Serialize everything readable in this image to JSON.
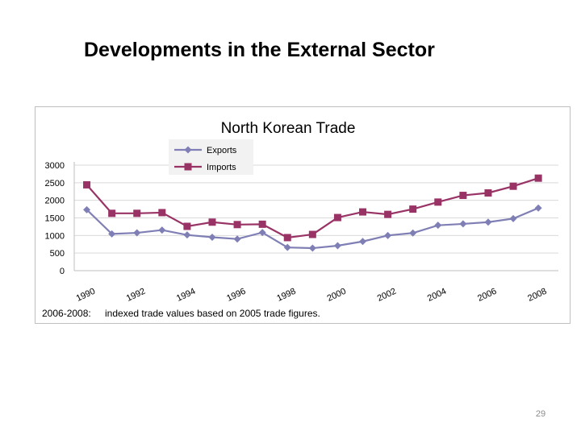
{
  "slide": {
    "title": "Developments in the External Sector",
    "page_number": "29"
  },
  "chart_data": {
    "type": "line",
    "title": "North Korean Trade",
    "xlabel": "",
    "ylabel": "",
    "x": [
      1990,
      1991,
      1992,
      1993,
      1994,
      1995,
      1996,
      1997,
      1998,
      1999,
      2000,
      2001,
      2002,
      2003,
      2004,
      2005,
      2006,
      2007,
      2008
    ],
    "x_tick_labels": [
      "1990",
      "1992",
      "1994",
      "1996",
      "1998",
      "2000",
      "2002",
      "2004",
      "2006",
      "2008"
    ],
    "x_tick_positions": [
      1990,
      1992,
      1994,
      1996,
      1998,
      2000,
      2002,
      2004,
      2006,
      2008
    ],
    "y_ticks": [
      0,
      500,
      1000,
      1500,
      2000,
      2500,
      3000
    ],
    "ylim": [
      0,
      3000
    ],
    "grid": true,
    "legend_position": "top-center",
    "series": [
      {
        "name": "Exports",
        "color": "#7f7fb5",
        "marker": "diamond",
        "values": [
          1733,
          1045,
          1075,
          1155,
          1015,
          950,
          900,
          1085,
          660,
          640,
          710,
          830,
          1000,
          1070,
          1290,
          1330,
          1380,
          1480,
          1780
        ]
      },
      {
        "name": "Imports",
        "color": "#993366",
        "marker": "square",
        "values": [
          2440,
          1630,
          1630,
          1650,
          1260,
          1380,
          1310,
          1320,
          940,
          1030,
          1510,
          1670,
          1600,
          1750,
          1950,
          2140,
          2210,
          2400,
          2630
        ]
      }
    ],
    "footnote_label": "2006-2008:",
    "footnote_text": "indexed trade values based on 2005 trade figures."
  }
}
